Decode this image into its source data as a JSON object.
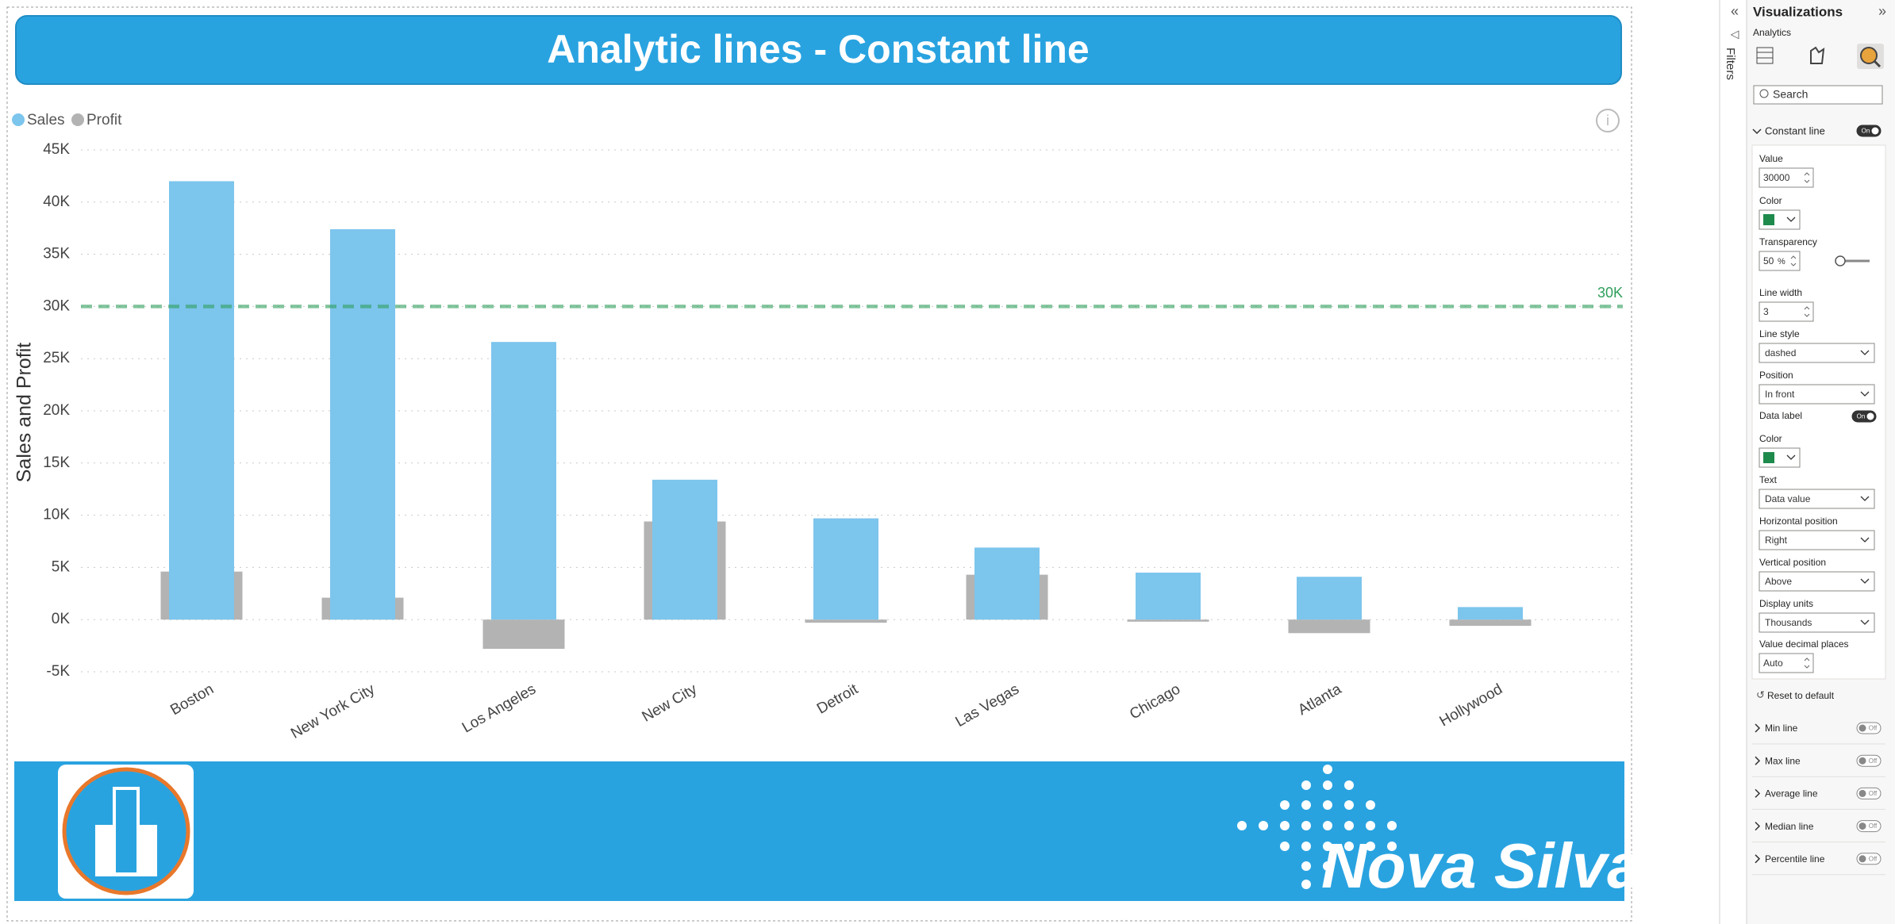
{
  "header": {
    "title": "Analytic lines - Constant line"
  },
  "chart_data": {
    "type": "bar",
    "y_label": "Sales and Profit",
    "categories": [
      "Boston",
      "New York City",
      "Los Angeles",
      "New City",
      "Detroit",
      "Las Vegas",
      "Chicago",
      "Atlanta",
      "Hollywood"
    ],
    "series": [
      {
        "name": "Profit",
        "color": "#b3b3b3",
        "values": [
          4600,
          2100,
          -2800,
          9400,
          -300,
          4300,
          -200,
          -1300,
          -600
        ]
      },
      {
        "name": "Sales",
        "color": "#7cc5ed",
        "values": [
          42000,
          37400,
          26600,
          13400,
          9700,
          6900,
          4500,
          4100,
          1200
        ]
      }
    ],
    "legend": [
      "Sales",
      "Profit"
    ],
    "legend_colors": [
      "#7cc5ed",
      "#b3b3b3"
    ],
    "ylim": [
      -5000,
      45000
    ],
    "yticks": [
      {
        "value": -5000,
        "label": "-5K"
      },
      {
        "value": 0,
        "label": "0K"
      },
      {
        "value": 5000,
        "label": "5K"
      },
      {
        "value": 10000,
        "label": "10K"
      },
      {
        "value": 15000,
        "label": "15K"
      },
      {
        "value": 20000,
        "label": "20K"
      },
      {
        "value": 25000,
        "label": "25K"
      },
      {
        "value": 30000,
        "label": "30K"
      },
      {
        "value": 35000,
        "label": "35K"
      },
      {
        "value": 40000,
        "label": "40K"
      },
      {
        "value": 45000,
        "label": "45K"
      }
    ],
    "grid": true,
    "constant_line": {
      "value": 30000,
      "label": "30K",
      "color": "#2e9e5b",
      "style": "dashed"
    }
  },
  "logo": {
    "text": "Nova Silva"
  },
  "panel": {
    "title": "Visualizations",
    "tab": "Analytics",
    "filters": "Filters",
    "search": "Search",
    "section": {
      "title": "Constant line",
      "toggle": "On",
      "reset": "Reset to default",
      "fields": [
        {
          "label": "Value",
          "input": "30000"
        },
        {
          "label": "Color",
          "swatch": "#1e8a4c"
        },
        {
          "label": "Transparency",
          "input": "50",
          "unit": "%"
        },
        {
          "label": "Line width",
          "input": "3"
        },
        {
          "label": "Line style",
          "dropdown": "dashed"
        },
        {
          "label": "Position",
          "dropdown": "In front"
        },
        {
          "label": "Data label",
          "toggle": "On"
        },
        {
          "label": "Color",
          "swatch": "#1e8a4c"
        },
        {
          "label": "Text",
          "dropdown": "Data value"
        },
        {
          "label": "Horizontal position",
          "dropdown": "Right"
        },
        {
          "label": "Vertical position",
          "dropdown": "Above"
        },
        {
          "label": "Display units",
          "dropdown": "Thousands"
        },
        {
          "label": "Value decimal places",
          "input": "Auto"
        }
      ]
    },
    "collapsed": [
      {
        "title": "Min line",
        "toggle": "Off"
      },
      {
        "title": "Max line",
        "toggle": "Off"
      },
      {
        "title": "Average line",
        "toggle": "Off"
      },
      {
        "title": "Median line",
        "toggle": "Off"
      },
      {
        "title": "Percentile line",
        "toggle": "Off"
      }
    ]
  }
}
